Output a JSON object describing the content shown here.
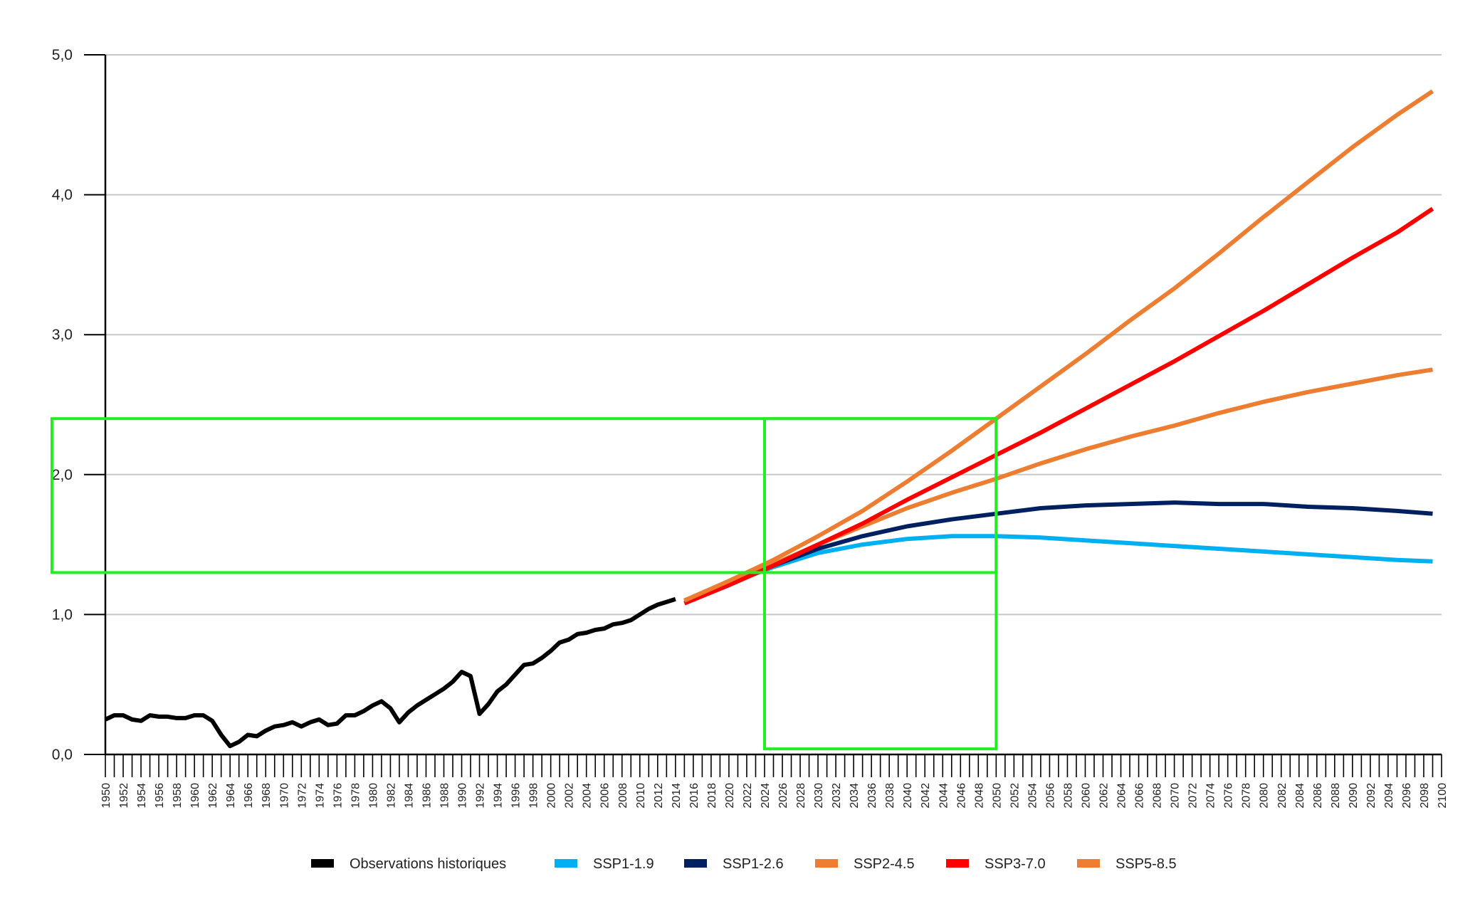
{
  "chart_data": {
    "type": "line",
    "title": "",
    "xlabel": "",
    "ylabel": "",
    "xlim": [
      1950,
      2100
    ],
    "ylim": [
      0,
      5
    ],
    "y_ticks": [
      0,
      1,
      2,
      3,
      4,
      5
    ],
    "y_tick_labels": [
      "0,0",
      "1,0",
      "2,0",
      "3,0",
      "4,0",
      "5,0"
    ],
    "x_tick_labels": [
      "1950",
      "1952",
      "1954",
      "1956",
      "1958",
      "1960",
      "1962",
      "1964",
      "1966",
      "1968",
      "1970",
      "1972",
      "1974",
      "1976",
      "1978",
      "1980",
      "1982",
      "1984",
      "1986",
      "1988",
      "1990",
      "1992",
      "1994",
      "1996",
      "1998",
      "2000",
      "2002",
      "2004",
      "2006",
      "2008",
      "2010",
      "2012",
      "2014",
      "2016",
      "2018",
      "2020",
      "2022",
      "2024",
      "2026",
      "2028",
      "2030",
      "2032",
      "2034",
      "2036",
      "2038",
      "2040",
      "2042",
      "2044",
      "2046",
      "2048",
      "2050",
      "2052",
      "2054",
      "2056",
      "2058",
      "2060",
      "2062",
      "2064",
      "2066",
      "2068",
      "2070",
      "2072",
      "2074",
      "2076",
      "2078",
      "2080",
      "2082",
      "2084",
      "2086",
      "2088",
      "2090",
      "2092",
      "2094",
      "2096",
      "2098",
      "2100"
    ],
    "grid": "horizontal",
    "legend_position": "bottom-center",
    "series": [
      {
        "name": "Observations historiques",
        "color": "#000000",
        "x": [
          1950,
          1951,
          1952,
          1953,
          1954,
          1955,
          1956,
          1957,
          1958,
          1959,
          1960,
          1961,
          1962,
          1963,
          1964,
          1965,
          1966,
          1967,
          1968,
          1969,
          1970,
          1971,
          1972,
          1973,
          1974,
          1975,
          1976,
          1977,
          1978,
          1979,
          1980,
          1981,
          1982,
          1983,
          1984,
          1985,
          1986,
          1987,
          1988,
          1989,
          1990,
          1991,
          1992,
          1993,
          1994,
          1995,
          1996,
          1997,
          1998,
          1999,
          2000,
          2001,
          2002,
          2003,
          2004,
          2005,
          2006,
          2007,
          2008,
          2009,
          2010,
          2011,
          2012,
          2013,
          2014
        ],
        "y": [
          0.25,
          0.28,
          0.28,
          0.25,
          0.24,
          0.28,
          0.27,
          0.27,
          0.26,
          0.26,
          0.28,
          0.28,
          0.24,
          0.14,
          0.06,
          0.09,
          0.14,
          0.13,
          0.17,
          0.2,
          0.21,
          0.23,
          0.2,
          0.23,
          0.25,
          0.21,
          0.22,
          0.28,
          0.28,
          0.31,
          0.35,
          0.38,
          0.33,
          0.23,
          0.3,
          0.35,
          0.39,
          0.43,
          0.47,
          0.52,
          0.59,
          0.56,
          0.29,
          0.36,
          0.45,
          0.5,
          0.57,
          0.64,
          0.65,
          0.69,
          0.74,
          0.8,
          0.82,
          0.86,
          0.87,
          0.89,
          0.9,
          0.93,
          0.94,
          0.96,
          1.0,
          1.04,
          1.07,
          1.09,
          1.11
        ]
      },
      {
        "name": "SSP1-1.9",
        "color": "#00B0F0",
        "x": [
          2015,
          2020,
          2025,
          2030,
          2035,
          2040,
          2045,
          2050,
          2055,
          2060,
          2065,
          2070,
          2075,
          2080,
          2085,
          2090,
          2095,
          2099
        ],
        "y": [
          1.1,
          1.22,
          1.34,
          1.44,
          1.5,
          1.54,
          1.56,
          1.56,
          1.55,
          1.53,
          1.51,
          1.49,
          1.47,
          1.45,
          1.43,
          1.41,
          1.39,
          1.38
        ]
      },
      {
        "name": "SSP1-2.6",
        "color": "#002060",
        "x": [
          2015,
          2020,
          2025,
          2030,
          2035,
          2040,
          2045,
          2050,
          2055,
          2060,
          2065,
          2070,
          2075,
          2080,
          2085,
          2090,
          2095,
          2099
        ],
        "y": [
          1.1,
          1.22,
          1.35,
          1.47,
          1.56,
          1.63,
          1.68,
          1.72,
          1.76,
          1.78,
          1.79,
          1.8,
          1.79,
          1.79,
          1.77,
          1.76,
          1.74,
          1.72
        ]
      },
      {
        "name": "SSP2-4.5",
        "color": "#ED7D31",
        "x": [
          2015,
          2020,
          2025,
          2030,
          2035,
          2040,
          2045,
          2050,
          2055,
          2060,
          2065,
          2070,
          2075,
          2080,
          2085,
          2090,
          2095,
          2099
        ],
        "y": [
          1.1,
          1.23,
          1.36,
          1.5,
          1.63,
          1.76,
          1.87,
          1.97,
          2.08,
          2.18,
          2.27,
          2.35,
          2.44,
          2.52,
          2.59,
          2.65,
          2.71,
          2.75
        ]
      },
      {
        "name": "SSP3-7.0",
        "color": "#FF0000",
        "x": [
          2015,
          2020,
          2025,
          2030,
          2035,
          2040,
          2045,
          2050,
          2055,
          2060,
          2065,
          2070,
          2075,
          2080,
          2085,
          2090,
          2095,
          2099
        ],
        "y": [
          1.08,
          1.21,
          1.35,
          1.5,
          1.65,
          1.82,
          1.98,
          2.14,
          2.3,
          2.47,
          2.64,
          2.81,
          2.99,
          3.17,
          3.36,
          3.55,
          3.73,
          3.9
        ]
      },
      {
        "name": "SSP5-8.5",
        "color": "#ED7D31",
        "x": [
          2015,
          2020,
          2025,
          2030,
          2035,
          2040,
          2045,
          2050,
          2055,
          2060,
          2065,
          2070,
          2075,
          2080,
          2085,
          2090,
          2095,
          2099
        ],
        "y": [
          1.1,
          1.24,
          1.39,
          1.56,
          1.74,
          1.95,
          2.17,
          2.4,
          2.63,
          2.86,
          3.1,
          3.33,
          3.58,
          3.84,
          4.09,
          4.34,
          4.57,
          4.74
        ]
      }
    ],
    "annotations": [
      {
        "shape": "rectangle",
        "color": "#22EE22",
        "x_range": [
          1944,
          2050
        ],
        "y_range": [
          1.3,
          2.4
        ]
      },
      {
        "shape": "rectangle",
        "color": "#22EE22",
        "x_range": [
          2024,
          2050
        ],
        "y_range": [
          0.04,
          2.4
        ]
      }
    ]
  }
}
